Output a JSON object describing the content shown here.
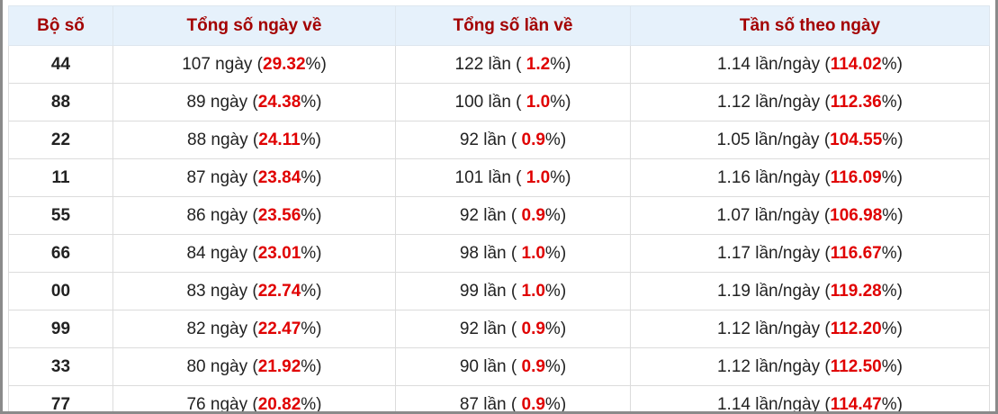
{
  "table": {
    "header": [
      "Bộ số",
      "Tổng số ngày về",
      "Tổng số lần về",
      "Tần số theo ngày"
    ],
    "rows": [
      [
        "44",
        [
          "107 ngày (",
          "29.32",
          "%)"
        ],
        [
          "122 lần ( ",
          "1.2",
          "%)"
        ],
        [
          "1.14 lần/ngày (",
          "114.02",
          "%)"
        ]
      ],
      [
        "88",
        [
          "89 ngày (",
          "24.38",
          "%)"
        ],
        [
          "100 lần ( ",
          "1.0",
          "%)"
        ],
        [
          "1.12 lần/ngày (",
          "112.36",
          "%)"
        ]
      ],
      [
        "22",
        [
          "88 ngày (",
          "24.11",
          "%)"
        ],
        [
          "92 lần ( ",
          "0.9",
          "%)"
        ],
        [
          "1.05 lần/ngày (",
          "104.55",
          "%)"
        ]
      ],
      [
        "11",
        [
          "87 ngày (",
          "23.84",
          "%)"
        ],
        [
          "101 lần ( ",
          "1.0",
          "%)"
        ],
        [
          "1.16 lần/ngày (",
          "116.09",
          "%)"
        ]
      ],
      [
        "55",
        [
          "86 ngày (",
          "23.56",
          "%)"
        ],
        [
          "92 lần ( ",
          "0.9",
          "%)"
        ],
        [
          "1.07 lần/ngày (",
          "106.98",
          "%)"
        ]
      ],
      [
        "66",
        [
          "84 ngày (",
          "23.01",
          "%)"
        ],
        [
          "98 lần ( ",
          "1.0",
          "%)"
        ],
        [
          "1.17 lần/ngày (",
          "116.67",
          "%)"
        ]
      ],
      [
        "00",
        [
          "83 ngày (",
          "22.74",
          "%)"
        ],
        [
          "99 lần ( ",
          "1.0",
          "%)"
        ],
        [
          "1.19 lần/ngày (",
          "119.28",
          "%)"
        ]
      ],
      [
        "99",
        [
          "82 ngày (",
          "22.47",
          "%)"
        ],
        [
          "92 lần ( ",
          "0.9",
          "%)"
        ],
        [
          "1.12 lần/ngày (",
          "112.20",
          "%)"
        ]
      ],
      [
        "33",
        [
          "80 ngày (",
          "21.92",
          "%)"
        ],
        [
          "90 lần ( ",
          "0.9",
          "%)"
        ],
        [
          "1.12 lần/ngày (",
          "112.50",
          "%)"
        ]
      ],
      [
        "77",
        [
          "76 ngày (",
          "20.82",
          "%)"
        ],
        [
          "87 lần ( ",
          "0.9",
          "%)"
        ],
        [
          "1.14 lần/ngày (",
          "114.47",
          "%)"
        ]
      ]
    ]
  }
}
